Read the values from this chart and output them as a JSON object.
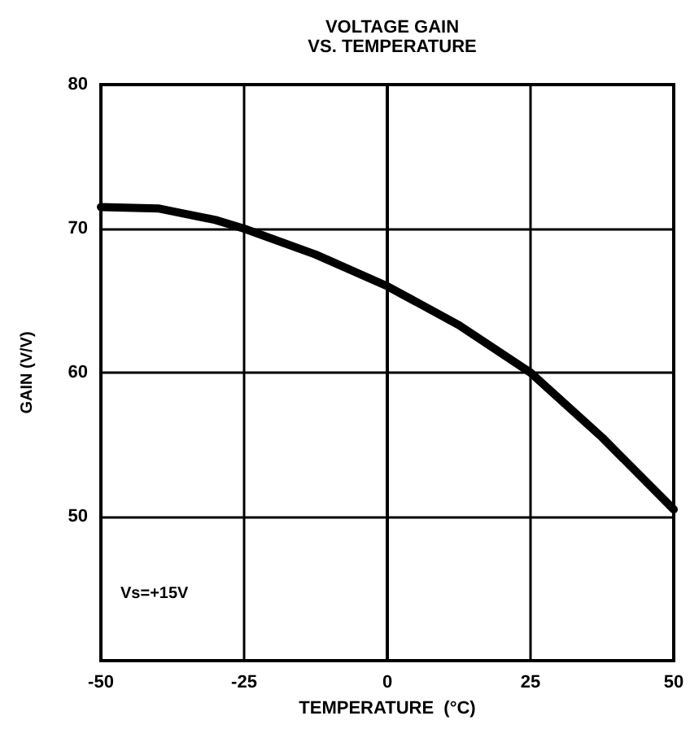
{
  "chart_data": {
    "type": "line",
    "title": "VOLTAGE GAIN\nVS. TEMPERATURE",
    "xlabel": "TEMPERATURE  (°C)",
    "ylabel": "GAIN (V/V)",
    "annotations": [
      "Vs=+15V"
    ],
    "x": [
      -50,
      -40,
      -30,
      -25,
      -12.5,
      0,
      12.5,
      25,
      37.5,
      50
    ],
    "series": [
      {
        "color": "#000000",
        "values": [
          71.5,
          71.4,
          70.6,
          70,
          68.2,
          66,
          63.3,
          60,
          55.5,
          50.5
        ]
      }
    ],
    "xlim": [
      -50,
      50
    ],
    "xticks": [
      -50,
      -25,
      0,
      25,
      50
    ],
    "ylim": [
      40,
      80
    ],
    "yticks": [
      {
        "value": 40,
        "label": null
      },
      50,
      60,
      70,
      80
    ],
    "grid": true,
    "marker": "none",
    "line_style": "solid"
  }
}
